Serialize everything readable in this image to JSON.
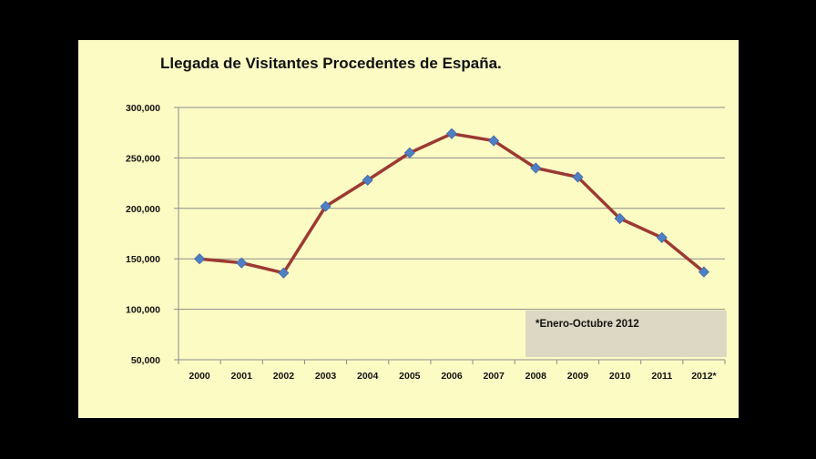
{
  "chart_data": {
    "type": "line",
    "title": "Llegada de Visitantes  Procedentes de España.",
    "xlabel": "",
    "ylabel": "",
    "categories": [
      "2000",
      "2001",
      "2002",
      "2003",
      "2004",
      "2005",
      "2006",
      "2007",
      "2008",
      "2009",
      "2010",
      "2011",
      "2012*"
    ],
    "series": [
      {
        "values": [
          150000,
          146000,
          136000,
          202000,
          228000,
          255000,
          274000,
          267000,
          240000,
          231000,
          190000,
          171000,
          137000
        ]
      }
    ],
    "ylim": [
      50000,
      300000
    ],
    "yticks": [
      "50,000",
      "100,000",
      "150,000",
      "200,000",
      "250,000",
      "300,000"
    ],
    "grid": true,
    "legend": "none",
    "annotation": "*Enero-Octubre 2012",
    "colors": {
      "background": "#fdfbc4",
      "frame": "#000000",
      "line": "#9b3a33",
      "marker": "#4f7fc3",
      "grid": "#8c8c8c",
      "note_box": "#ddd8c4"
    }
  }
}
